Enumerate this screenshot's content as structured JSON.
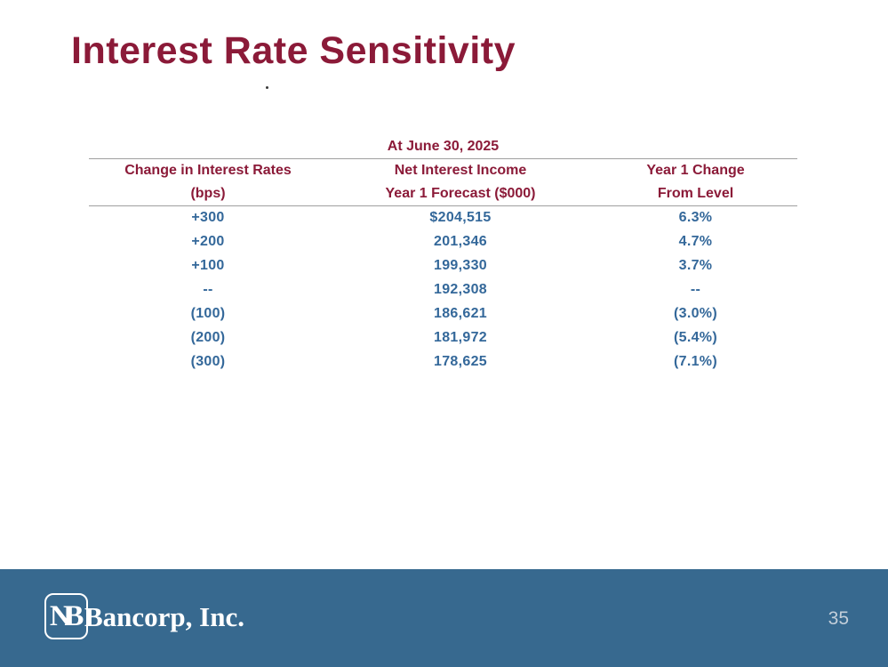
{
  "slide": {
    "title": "Interest Rate Sensitivity"
  },
  "table": {
    "caption": "At June 30, 2025",
    "columns": [
      {
        "line1": "Change in Interest Rates",
        "line2": "(bps)"
      },
      {
        "line1": "Net Interest Income",
        "line2": "Year 1 Forecast ($000)"
      },
      {
        "line1": "Year 1 Change",
        "line2": "From Level"
      }
    ],
    "rows": [
      [
        "+300",
        "$204,515",
        "6.3%"
      ],
      [
        "+200",
        "201,346",
        "4.7%"
      ],
      [
        "+100",
        "199,330",
        "3.7%"
      ],
      [
        "--",
        "192,308",
        "--"
      ],
      [
        "(100)",
        "186,621",
        "(3.0%)"
      ],
      [
        "(200)",
        "181,972",
        "(5.4%)"
      ],
      [
        "(300)",
        "178,625",
        "(7.1%)"
      ]
    ]
  },
  "footer": {
    "logo_monogram": "NB",
    "logo_text": "Bancorp, Inc.",
    "page_number": "35"
  },
  "colors": {
    "heading_maroon": "#8B1A38",
    "data_blue": "#34689A",
    "footer_blue": "#37698F",
    "rule_gray": "#9f9f9f",
    "page_number_text": "#C3CFDA"
  }
}
